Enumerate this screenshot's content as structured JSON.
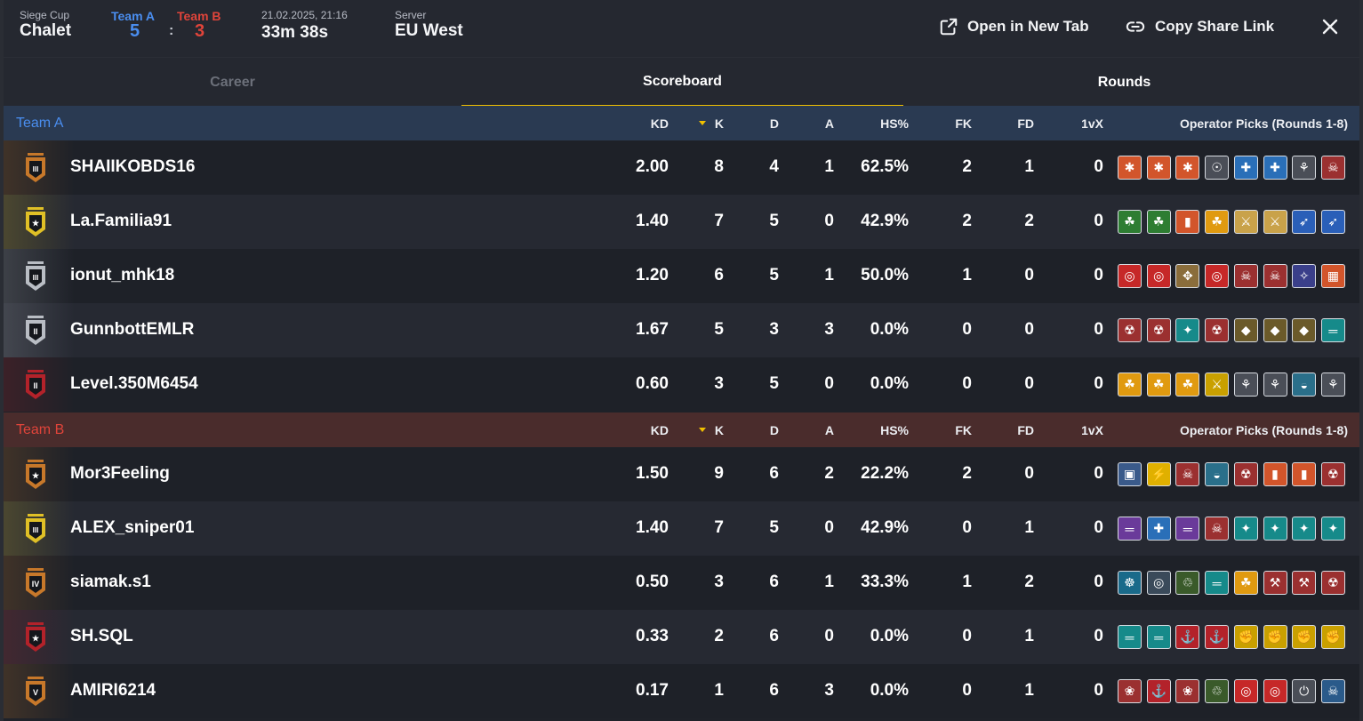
{
  "header": {
    "event_label": "Siege Cup",
    "map": "Chalet",
    "team_a_label": "Team A",
    "team_b_label": "Team B",
    "score_a": "5",
    "score_separator": ":",
    "score_b": "3",
    "datetime": "21.02.2025, 21:16",
    "duration": "33m 38s",
    "server_label": "Server",
    "server": "EU West",
    "open_new_tab": "Open in New Tab",
    "copy_share_link": "Copy Share Link"
  },
  "tabs": [
    {
      "label": "Career",
      "active": false
    },
    {
      "label": "Scoreboard",
      "active": true
    },
    {
      "label": "Rounds",
      "active": false
    }
  ],
  "columns": {
    "kd": "KD",
    "k": "K",
    "d": "D",
    "a": "A",
    "hs": "HS%",
    "fk": "FK",
    "fd": "FD",
    "onevx": "1vX",
    "operators": "Operator Picks (Rounds 1-8)"
  },
  "teams": [
    {
      "name": "Team A",
      "players": [
        {
          "name": "SHAIIKOBDS16",
          "rank": "III",
          "rank_color": "#c7782a",
          "kd": "2.00",
          "k": "8",
          "d": "4",
          "a": "1",
          "hs": "62.5%",
          "fk": "2",
          "fd": "1",
          "onevx": "0",
          "ops": [
            [
              "#d2552b",
              "✱"
            ],
            [
              "#d2552b",
              "✱"
            ],
            [
              "#d2552b",
              "✱"
            ],
            [
              "#4a4e57",
              "☉"
            ],
            [
              "#2a6fb8",
              "✚"
            ],
            [
              "#2a6fb8",
              "✚"
            ],
            [
              "#4a4e57",
              "⚘"
            ],
            [
              "#9b3030",
              "☠"
            ]
          ]
        },
        {
          "name": "La.Familia91",
          "rank": "★",
          "rank_color": "#e0c026",
          "kd": "1.40",
          "k": "7",
          "d": "5",
          "a": "0",
          "hs": "42.9%",
          "fk": "2",
          "fd": "2",
          "onevx": "0",
          "ops": [
            [
              "#2e7d32",
              "☘"
            ],
            [
              "#2e7d32",
              "☘"
            ],
            [
              "#d2552b",
              "▮"
            ],
            [
              "#e09a10",
              "☘"
            ],
            [
              "#c9a24a",
              "⚔"
            ],
            [
              "#c9a24a",
              "⚔"
            ],
            [
              "#2a5fb8",
              "➶"
            ],
            [
              "#2a5fb8",
              "➶"
            ]
          ]
        },
        {
          "name": "ionut_mhk18",
          "rank": "III",
          "rank_color": "#b9bdc4",
          "kd": "1.20",
          "k": "6",
          "d": "5",
          "a": "1",
          "hs": "50.0%",
          "fk": "1",
          "fd": "0",
          "onevx": "0",
          "ops": [
            [
              "#c62828",
              "◎"
            ],
            [
              "#c62828",
              "◎"
            ],
            [
              "#8a6d3b",
              "✥"
            ],
            [
              "#c62828",
              "◎"
            ],
            [
              "#9b3030",
              "☠"
            ],
            [
              "#9b3030",
              "☠"
            ],
            [
              "#3a3f8a",
              "✧"
            ],
            [
              "#d2552b",
              "▦"
            ]
          ]
        },
        {
          "name": "GunnbottEMLR",
          "rank": "II",
          "rank_color": "#b9bdc4",
          "kd": "1.67",
          "k": "5",
          "d": "3",
          "a": "3",
          "hs": "0.0%",
          "fk": "0",
          "fd": "0",
          "onevx": "0",
          "ops": [
            [
              "#9b3030",
              "☢"
            ],
            [
              "#9b3030",
              "☢"
            ],
            [
              "#168a8a",
              "✦"
            ],
            [
              "#9b3030",
              "☢"
            ],
            [
              "#6b5a2a",
              "◆"
            ],
            [
              "#6b5a2a",
              "◆"
            ],
            [
              "#6b5a2a",
              "◆"
            ],
            [
              "#168a8a",
              "═"
            ]
          ]
        },
        {
          "name": "Level.350M6454",
          "rank": "II",
          "rank_color": "#b3222a",
          "kd": "0.60",
          "k": "3",
          "d": "5",
          "a": "0",
          "hs": "0.0%",
          "fk": "0",
          "fd": "0",
          "onevx": "0",
          "ops": [
            [
              "#e09a10",
              "☘"
            ],
            [
              "#e09a10",
              "☘"
            ],
            [
              "#e09a10",
              "☘"
            ],
            [
              "#c9a000",
              "⚔"
            ],
            [
              "#4a4e57",
              "⚘"
            ],
            [
              "#4a4e57",
              "⚘"
            ],
            [
              "#2a6f8a",
              "◒"
            ],
            [
              "#4a4e57",
              "⚘"
            ]
          ]
        }
      ]
    },
    {
      "name": "Team B",
      "players": [
        {
          "name": "Mor3Feeling",
          "rank": "★",
          "rank_color": "#c7782a",
          "kd": "1.50",
          "k": "9",
          "d": "6",
          "a": "2",
          "hs": "22.2%",
          "fk": "2",
          "fd": "0",
          "onevx": "0",
          "ops": [
            [
              "#3a5a8a",
              "▣"
            ],
            [
              "#e0b000",
              "⚡"
            ],
            [
              "#9b3030",
              "☠"
            ],
            [
              "#2a6f8a",
              "◒"
            ],
            [
              "#9b3030",
              "☢"
            ],
            [
              "#d2552b",
              "▮"
            ],
            [
              "#d2552b",
              "▮"
            ],
            [
              "#9b3030",
              "☢"
            ]
          ]
        },
        {
          "name": "ALEX_sniper01",
          "rank": "III",
          "rank_color": "#e0c026",
          "kd": "1.40",
          "k": "7",
          "d": "5",
          "a": "0",
          "hs": "42.9%",
          "fk": "0",
          "fd": "1",
          "onevx": "0",
          "ops": [
            [
              "#6a3a9a",
              "═"
            ],
            [
              "#2a6fb8",
              "✚"
            ],
            [
              "#6a3a9a",
              "═"
            ],
            [
              "#9b3030",
              "☠"
            ],
            [
              "#168a8a",
              "✦"
            ],
            [
              "#168a8a",
              "✦"
            ],
            [
              "#168a8a",
              "✦"
            ],
            [
              "#168a8a",
              "✦"
            ]
          ]
        },
        {
          "name": "siamak.s1",
          "rank": "IV",
          "rank_color": "#c7782a",
          "kd": "0.50",
          "k": "3",
          "d": "6",
          "a": "1",
          "hs": "33.3%",
          "fk": "1",
          "fd": "2",
          "onevx": "0",
          "ops": [
            [
              "#1a6a8a",
              "☸"
            ],
            [
              "#3a4a5a",
              "◎"
            ],
            [
              "#3a5a2a",
              "♲"
            ],
            [
              "#168a8a",
              "═"
            ],
            [
              "#e09a10",
              "☘"
            ],
            [
              "#9b3030",
              "⚒"
            ],
            [
              "#9b3030",
              "⚒"
            ],
            [
              "#9b3030",
              "☢"
            ]
          ]
        },
        {
          "name": "SH.SQL",
          "rank": "★",
          "rank_color": "#b3222a",
          "kd": "0.33",
          "k": "2",
          "d": "6",
          "a": "0",
          "hs": "0.0%",
          "fk": "0",
          "fd": "1",
          "onevx": "0",
          "ops": [
            [
              "#168a8a",
              "═"
            ],
            [
              "#168a8a",
              "═"
            ],
            [
              "#b3222a",
              "⚓"
            ],
            [
              "#b3222a",
              "⚓"
            ],
            [
              "#c9a000",
              "✊"
            ],
            [
              "#c9a000",
              "✊"
            ],
            [
              "#c9a000",
              "✊"
            ],
            [
              "#c9a000",
              "✊"
            ]
          ]
        },
        {
          "name": "AMIRI6214",
          "rank": "V",
          "rank_color": "#c7782a",
          "kd": "0.17",
          "k": "1",
          "d": "6",
          "a": "3",
          "hs": "0.0%",
          "fk": "0",
          "fd": "1",
          "onevx": "0",
          "ops": [
            [
              "#9b3030",
              "❀"
            ],
            [
              "#b3222a",
              "⚓"
            ],
            [
              "#9b3030",
              "❀"
            ],
            [
              "#3a5a2a",
              "♲"
            ],
            [
              "#c62828",
              "◎"
            ],
            [
              "#c62828",
              "◎"
            ],
            [
              "#4a4e57",
              "⏻"
            ],
            [
              "#2a5a8a",
              "☠"
            ]
          ]
        }
      ]
    }
  ]
}
